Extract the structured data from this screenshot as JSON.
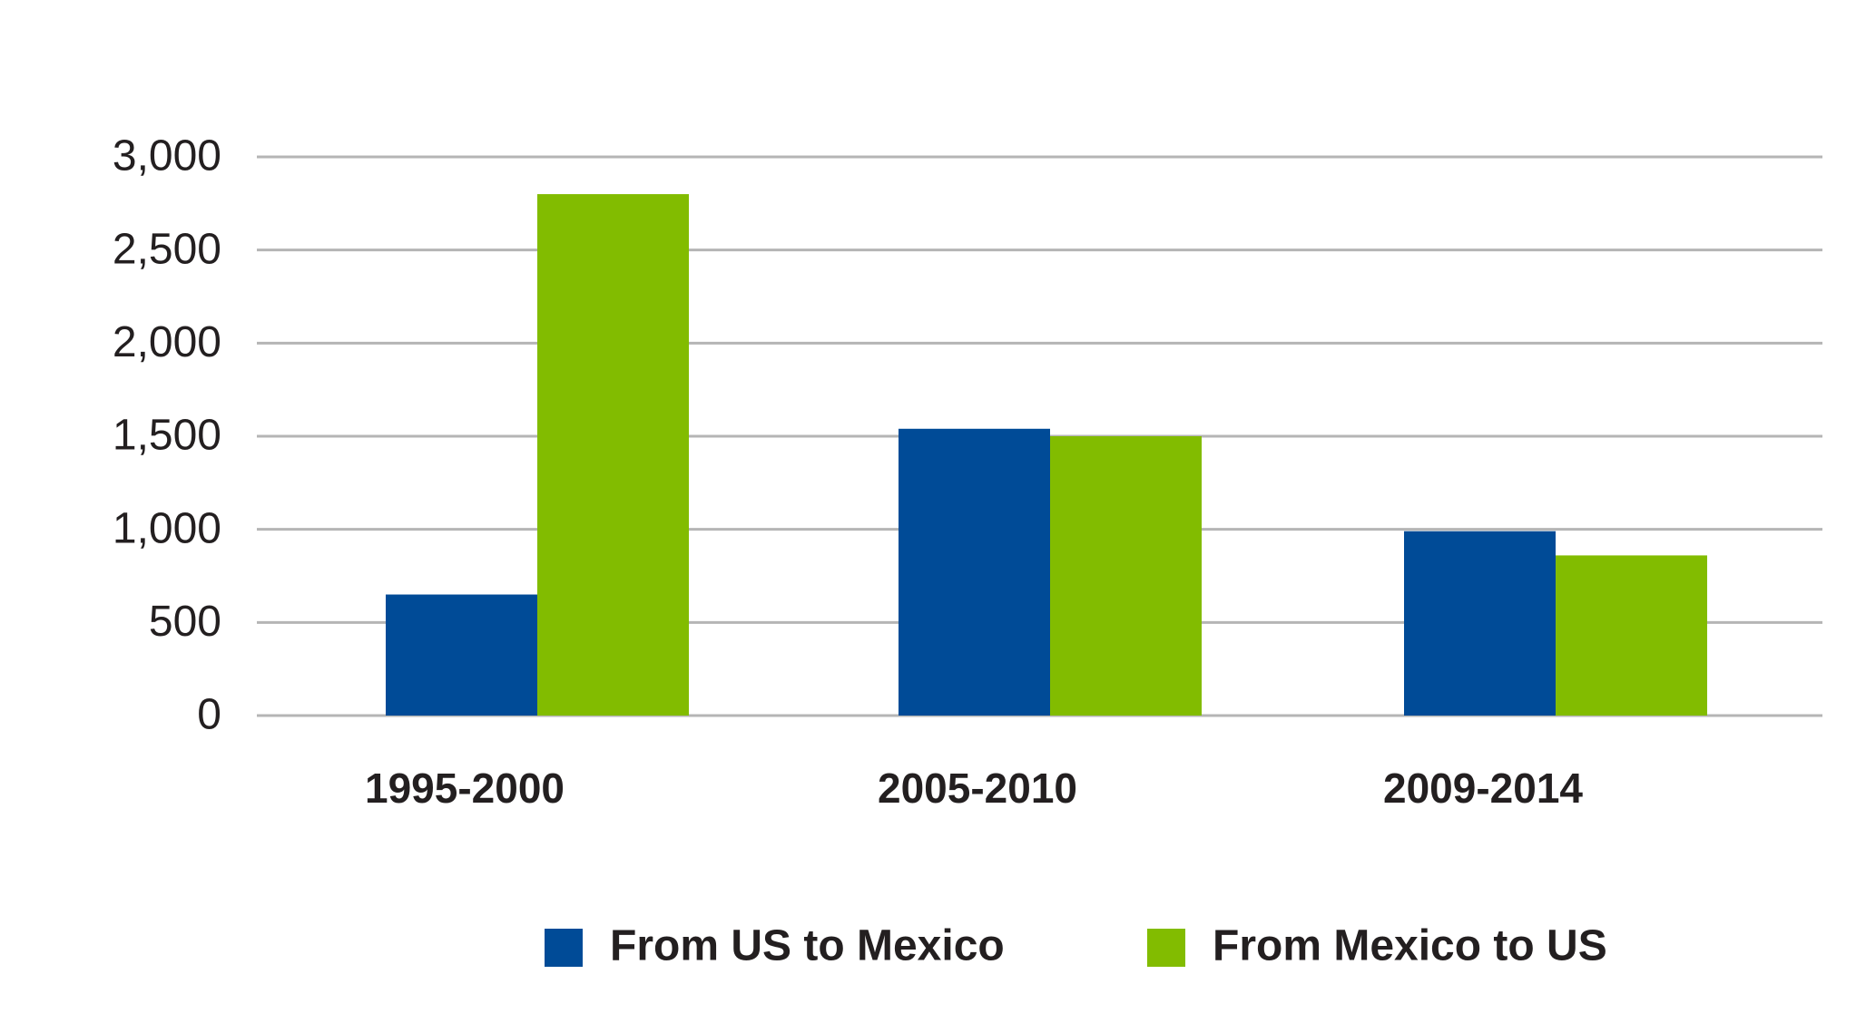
{
  "chart_data": {
    "type": "bar",
    "title": "",
    "xlabel": "",
    "ylabel": "",
    "categories": [
      "1995-2000",
      "2005-2010",
      "2009-2014"
    ],
    "series": [
      {
        "name": "From US to Mexico",
        "color": "#004b97",
        "values": [
          650,
          1540,
          990
        ]
      },
      {
        "name": "From Mexico to US",
        "color": "#82bc00",
        "values": [
          2800,
          1500,
          860
        ]
      }
    ],
    "ylim": [
      0,
      3000
    ],
    "yticks": [
      0,
      500,
      1000,
      1500,
      2000,
      2500,
      3000
    ],
    "ytick_labels": [
      "0",
      "500",
      "1,000",
      "1,500",
      "2,000",
      "2,500",
      "3,000"
    ],
    "grid": true,
    "grid_color": "#b5b5b5",
    "legend_position": "bottom-center"
  }
}
